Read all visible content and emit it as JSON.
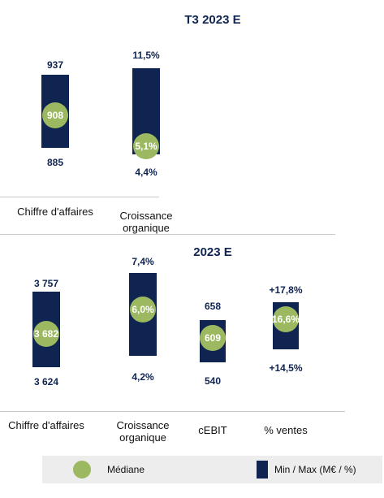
{
  "chart_data": [
    {
      "type": "range-bar",
      "title": "T3 2023 E",
      "categories": [
        {
          "label": "Chiffre d'affaires",
          "min": 885,
          "max": 937,
          "median": 908,
          "min_label": "885",
          "max_label": "937",
          "median_label": "908"
        },
        {
          "label": "Croissance\norganique",
          "min": 4.4,
          "max": 11.5,
          "median": 5.1,
          "min_label": "4,4%",
          "max_label": "11,5%",
          "median_label": "5,1%"
        }
      ]
    },
    {
      "type": "range-bar",
      "title": "2023 E",
      "categories": [
        {
          "label": "Chiffre d'affaires",
          "min": 3624,
          "max": 3757,
          "median": 3682,
          "min_label": "3 624",
          "max_label": "3 757",
          "median_label": "3 682"
        },
        {
          "label": "Croissance\norganique",
          "min": 4.2,
          "max": 7.4,
          "median": 6.0,
          "min_label": "4,2%",
          "max_label": "7,4%",
          "median_label": "6,0%"
        },
        {
          "label": "cEBIT",
          "min": 540,
          "max": 658,
          "median": 609,
          "min_label": "540",
          "max_label": "658",
          "median_label": "609"
        },
        {
          "label": "% ventes",
          "min": 14.5,
          "max": 17.8,
          "median": 16.6,
          "min_label": "+14,5%",
          "max_label": "+17,8%",
          "median_label": "16,6%"
        }
      ]
    }
  ],
  "legend": {
    "median_label": "Médiane",
    "range_label": "Min / Max (M€ / %)",
    "median_color": "#9cb861",
    "range_color": "#0f2451"
  }
}
